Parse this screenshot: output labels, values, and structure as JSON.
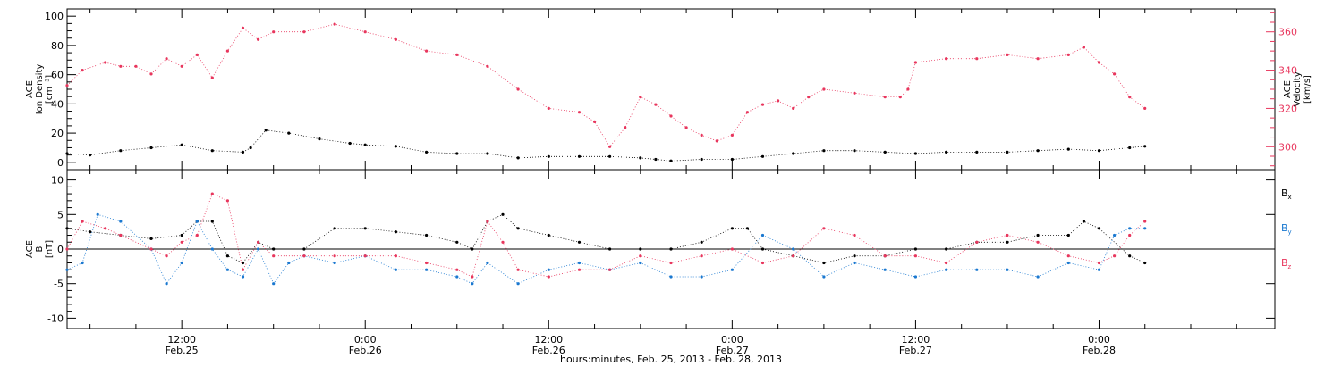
{
  "chart_data": [
    {
      "type": "scatter",
      "panel": "ion-density-velocity",
      "x_ticks": [
        {
          "hour": 12,
          "time": "12:00",
          "date": "Feb.25"
        },
        {
          "hour": 24,
          "time": "0:00",
          "date": "Feb.26"
        },
        {
          "hour": 36,
          "time": "12:00",
          "date": "Feb.26"
        },
        {
          "hour": 48,
          "time": "0:00",
          "date": "Feb.27"
        },
        {
          "hour": 60,
          "time": "12:00",
          "date": "Feb.27"
        },
        {
          "hour": 72,
          "time": "0:00",
          "date": "Feb.28"
        }
      ],
      "xlim_hours": [
        4.5,
        83.5
      ],
      "xlabel": "hours:minutes, Feb. 25, 2013 - Feb. 28, 2013",
      "left_axis": {
        "label_lines": [
          "ACE",
          "Ion Density",
          "[cm⁻³]"
        ],
        "ylim": [
          -5,
          105
        ],
        "ticks": [
          0,
          20,
          40,
          60,
          80,
          100
        ]
      },
      "right_axis": {
        "label_lines": [
          "ACE",
          "Velocity",
          "[km/s]"
        ],
        "ylim": [
          288,
          372
        ],
        "ticks": [
          300,
          320,
          340,
          360
        ],
        "color": "#e8365d"
      },
      "series": [
        {
          "key": "density",
          "color": "#000000",
          "axis": "left",
          "points": [
            [
              4.5,
              6
            ],
            [
              6,
              5
            ],
            [
              8,
              8
            ],
            [
              10,
              10
            ],
            [
              12,
              12
            ],
            [
              14,
              8
            ],
            [
              16,
              7
            ],
            [
              16.5,
              10
            ],
            [
              17.5,
              22
            ],
            [
              19,
              20
            ],
            [
              21,
              16
            ],
            [
              23,
              13
            ],
            [
              24,
              12
            ],
            [
              26,
              11
            ],
            [
              28,
              7
            ],
            [
              30,
              6
            ],
            [
              32,
              6
            ],
            [
              34,
              3
            ],
            [
              36,
              4
            ],
            [
              38,
              4
            ],
            [
              40,
              4
            ],
            [
              42,
              3
            ],
            [
              43,
              2
            ],
            [
              44,
              1
            ],
            [
              46,
              2
            ],
            [
              48,
              2
            ],
            [
              50,
              4
            ],
            [
              52,
              6
            ],
            [
              54,
              8
            ],
            [
              56,
              8
            ],
            [
              58,
              7
            ],
            [
              60,
              6
            ],
            [
              62,
              7
            ],
            [
              64,
              7
            ],
            [
              66,
              7
            ],
            [
              68,
              8
            ],
            [
              70,
              9
            ],
            [
              72,
              8
            ],
            [
              74,
              10
            ],
            [
              75,
              11
            ]
          ]
        },
        {
          "key": "velocity",
          "color": "#e8365d",
          "axis": "right",
          "points": [
            [
              4.5,
              332
            ],
            [
              5.5,
              340
            ],
            [
              7,
              344
            ],
            [
              8,
              342
            ],
            [
              9,
              342
            ],
            [
              10,
              338
            ],
            [
              11,
              346
            ],
            [
              12,
              342
            ],
            [
              13,
              348
            ],
            [
              14,
              336
            ],
            [
              15,
              350
            ],
            [
              16,
              362
            ],
            [
              17,
              356
            ],
            [
              18,
              360
            ],
            [
              20,
              360
            ],
            [
              22,
              364
            ],
            [
              24,
              360
            ],
            [
              26,
              356
            ],
            [
              28,
              350
            ],
            [
              30,
              348
            ],
            [
              32,
              342
            ],
            [
              34,
              330
            ],
            [
              36,
              320
            ],
            [
              38,
              318
            ],
            [
              39,
              313
            ],
            [
              40,
              300
            ],
            [
              41,
              310
            ],
            [
              42,
              326
            ],
            [
              43,
              322
            ],
            [
              44,
              316
            ],
            [
              45,
              310
            ],
            [
              46,
              306
            ],
            [
              47,
              303
            ],
            [
              48,
              306
            ],
            [
              49,
              318
            ],
            [
              50,
              322
            ],
            [
              51,
              324
            ],
            [
              52,
              320
            ],
            [
              53,
              326
            ],
            [
              54,
              330
            ],
            [
              56,
              328
            ],
            [
              58,
              326
            ],
            [
              59,
              326
            ],
            [
              59.5,
              330
            ],
            [
              60,
              344
            ],
            [
              62,
              346
            ],
            [
              64,
              346
            ],
            [
              66,
              348
            ],
            [
              68,
              346
            ],
            [
              70,
              348
            ],
            [
              71,
              352
            ],
            [
              72,
              344
            ],
            [
              73,
              338
            ],
            [
              74,
              326
            ],
            [
              75,
              320
            ]
          ]
        }
      ]
    },
    {
      "type": "scatter",
      "panel": "magnetic-field",
      "xlim_hours": [
        4.5,
        83.5
      ],
      "y_axis": {
        "label_lines": [
          "ACE",
          "B",
          "[nT]"
        ],
        "ylim": [
          -11.5,
          11.5
        ],
        "ticks": [
          -10,
          -5,
          0,
          5,
          10
        ]
      },
      "zero_line": 0,
      "series": [
        {
          "key": "bx",
          "name": "B",
          "sub": "x",
          "color": "#000000",
          "points": [
            [
              4.5,
              3
            ],
            [
              6,
              2.5
            ],
            [
              8,
              2
            ],
            [
              10,
              1.5
            ],
            [
              12,
              2
            ],
            [
              13,
              4
            ],
            [
              14,
              4
            ],
            [
              15,
              -1
            ],
            [
              16,
              -2
            ],
            [
              17,
              1
            ],
            [
              18,
              0
            ],
            [
              20,
              0
            ],
            [
              22,
              3
            ],
            [
              24,
              3
            ],
            [
              26,
              2.5
            ],
            [
              28,
              2
            ],
            [
              30,
              1
            ],
            [
              31,
              0
            ],
            [
              32,
              4
            ],
            [
              33,
              5
            ],
            [
              34,
              3
            ],
            [
              36,
              2
            ],
            [
              38,
              1
            ],
            [
              40,
              0
            ],
            [
              42,
              0
            ],
            [
              44,
              0
            ],
            [
              46,
              1
            ],
            [
              48,
              3
            ],
            [
              49,
              3
            ],
            [
              50,
              0
            ],
            [
              52,
              -1
            ],
            [
              54,
              -2
            ],
            [
              56,
              -1
            ],
            [
              58,
              -1
            ],
            [
              60,
              0
            ],
            [
              62,
              0
            ],
            [
              64,
              1
            ],
            [
              66,
              1
            ],
            [
              68,
              2
            ],
            [
              70,
              2
            ],
            [
              71,
              4
            ],
            [
              72,
              3
            ],
            [
              74,
              -1
            ],
            [
              75,
              -2
            ]
          ]
        },
        {
          "key": "by",
          "name": "B",
          "sub": "y",
          "color": "#1a78d0",
          "points": [
            [
              4.5,
              -3
            ],
            [
              5.5,
              -2
            ],
            [
              6.5,
              5
            ],
            [
              8,
              4
            ],
            [
              10,
              0
            ],
            [
              11,
              -5
            ],
            [
              12,
              -2
            ],
            [
              13,
              4
            ],
            [
              14,
              0
            ],
            [
              15,
              -3
            ],
            [
              16,
              -4
            ],
            [
              17,
              0
            ],
            [
              18,
              -5
            ],
            [
              19,
              -2
            ],
            [
              20,
              -1
            ],
            [
              22,
              -2
            ],
            [
              24,
              -1
            ],
            [
              26,
              -3
            ],
            [
              28,
              -3
            ],
            [
              30,
              -4
            ],
            [
              31,
              -5
            ],
            [
              32,
              -2
            ],
            [
              34,
              -5
            ],
            [
              36,
              -3
            ],
            [
              38,
              -2
            ],
            [
              40,
              -3
            ],
            [
              42,
              -2
            ],
            [
              44,
              -4
            ],
            [
              46,
              -4
            ],
            [
              48,
              -3
            ],
            [
              50,
              2
            ],
            [
              52,
              0
            ],
            [
              54,
              -4
            ],
            [
              56,
              -2
            ],
            [
              58,
              -3
            ],
            [
              60,
              -4
            ],
            [
              62,
              -3
            ],
            [
              64,
              -3
            ],
            [
              66,
              -3
            ],
            [
              68,
              -4
            ],
            [
              70,
              -2
            ],
            [
              72,
              -3
            ],
            [
              73,
              2
            ],
            [
              74,
              3
            ],
            [
              75,
              3
            ]
          ]
        },
        {
          "key": "bz",
          "name": "B",
          "sub": "z",
          "color": "#e8365d",
          "points": [
            [
              4.5,
              0
            ],
            [
              5.5,
              4
            ],
            [
              7,
              3
            ],
            [
              8,
              2
            ],
            [
              10,
              0
            ],
            [
              11,
              -1
            ],
            [
              12,
              1
            ],
            [
              13,
              2
            ],
            [
              14,
              8
            ],
            [
              15,
              7
            ],
            [
              16,
              -3
            ],
            [
              17,
              1
            ],
            [
              18,
              -1
            ],
            [
              20,
              -1
            ],
            [
              22,
              -1
            ],
            [
              24,
              -1
            ],
            [
              26,
              -1
            ],
            [
              28,
              -2
            ],
            [
              30,
              -3
            ],
            [
              31,
              -4
            ],
            [
              32,
              4
            ],
            [
              33,
              1
            ],
            [
              34,
              -3
            ],
            [
              36,
              -4
            ],
            [
              38,
              -3
            ],
            [
              40,
              -3
            ],
            [
              42,
              -1
            ],
            [
              44,
              -2
            ],
            [
              46,
              -1
            ],
            [
              48,
              0
            ],
            [
              50,
              -2
            ],
            [
              52,
              -1
            ],
            [
              54,
              3
            ],
            [
              56,
              2
            ],
            [
              58,
              -1
            ],
            [
              60,
              -1
            ],
            [
              62,
              -2
            ],
            [
              64,
              1
            ],
            [
              66,
              2
            ],
            [
              68,
              1
            ],
            [
              70,
              -1
            ],
            [
              72,
              -2
            ],
            [
              73,
              -1
            ],
            [
              74,
              2
            ],
            [
              75,
              4
            ]
          ]
        }
      ]
    }
  ]
}
